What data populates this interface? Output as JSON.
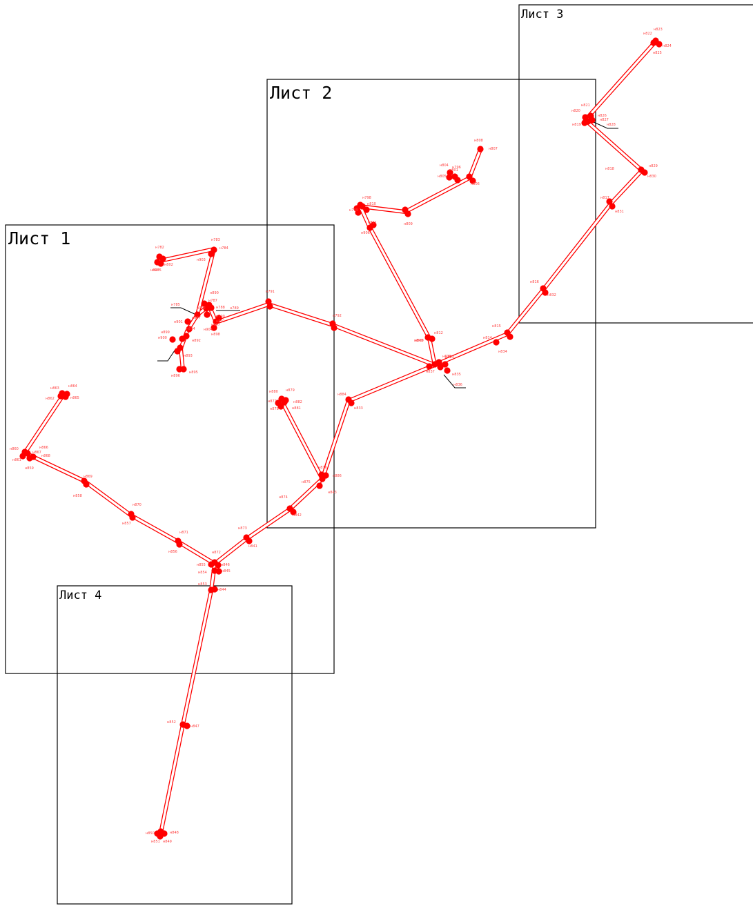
{
  "colors": {
    "route": "#ff0000",
    "sheet_frame": "#000000",
    "label": "#ff4040"
  },
  "sheets": [
    {
      "id": "sheet1",
      "label": "Лист 1"
    },
    {
      "id": "sheet2",
      "label": "Лист 2"
    },
    {
      "id": "sheet3",
      "label": "Лист 3"
    },
    {
      "id": "sheet4",
      "label": "Лист 4"
    }
  ],
  "nodes": [
    "н782",
    "н783",
    "н784",
    "н785",
    "н787",
    "н788",
    "н789",
    "н790",
    "н791",
    "н792",
    "н796",
    "н798",
    "н799",
    "н801",
    "н802",
    "н803",
    "н804",
    "н805",
    "н806",
    "н807",
    "н808",
    "н809",
    "н810",
    "н811",
    "н812",
    "н813",
    "н814",
    "н815",
    "н816",
    "н817",
    "н818",
    "н819",
    "н820",
    "н821",
    "н822",
    "н823",
    "н824",
    "н825",
    "н826",
    "н827",
    "н828",
    "н829",
    "н830",
    "н831",
    "н832",
    "н833",
    "н834",
    "н835",
    "н836",
    "н837",
    "н838",
    "н839",
    "н840",
    "н841",
    "н842",
    "н843",
    "н844",
    "н845",
    "н846",
    "н847",
    "н848",
    "н849",
    "н850",
    "н851",
    "н852",
    "н853",
    "н854",
    "н855",
    "н856",
    "н857",
    "н858",
    "н859",
    "н860",
    "н861",
    "н862",
    "н863",
    "н864",
    "н865",
    "н866",
    "н867",
    "н868",
    "н869",
    "н870",
    "н871",
    "н872",
    "н873",
    "н874",
    "н875",
    "н876",
    "н877",
    "н878",
    "н879",
    "н880",
    "н881",
    "н882",
    "н884",
    "н886",
    "н890",
    "н891",
    "н892",
    "н893",
    "н894",
    "н895",
    "н896",
    "н897",
    "н898",
    "н899",
    "н900",
    "н901",
    "н902",
    "н903",
    "н904",
    "н905",
    "н906",
    "н907"
  ]
}
